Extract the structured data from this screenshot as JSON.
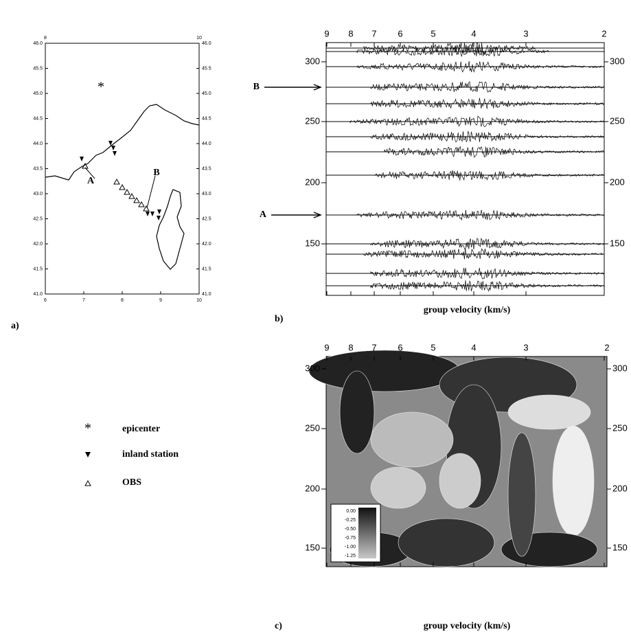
{
  "panel_a": {
    "label": "a)",
    "top_ticks": [
      "8",
      "10"
    ],
    "bottom_ticks": [
      "6",
      "7",
      "8",
      "9",
      "10"
    ],
    "lat_ticks": [
      "46.0",
      "45.5",
      "45.0",
      "44.5",
      "44.0",
      "43.5",
      "43.0",
      "42.5",
      "42.0",
      "41.5",
      "41.0"
    ],
    "markers": [
      "A",
      "B"
    ]
  },
  "legend": [
    {
      "label": "epicenter"
    },
    {
      "label": "inland station"
    },
    {
      "label": "OBS"
    }
  ],
  "panel_b": {
    "label": "b)",
    "velocity_ticks": [
      "9",
      "8",
      "7",
      "6",
      "5",
      "4",
      "3",
      "2"
    ],
    "distance_ticks": [
      "300",
      "250",
      "200",
      "150"
    ],
    "arrows": [
      "B",
      "A"
    ],
    "xlabel": "group velocity (km/s)"
  },
  "panel_c": {
    "label": "c)",
    "velocity_ticks": [
      "9",
      "8",
      "7",
      "6",
      "5",
      "4",
      "3",
      "2"
    ],
    "distance_ticks": [
      "300",
      "250",
      "200",
      "150"
    ],
    "xlabel": "group velocity (km/s)",
    "colorbar": [
      "0.00",
      "-0.25",
      "-0.50",
      "-0.75",
      "-1.00",
      "-1.25"
    ]
  }
}
